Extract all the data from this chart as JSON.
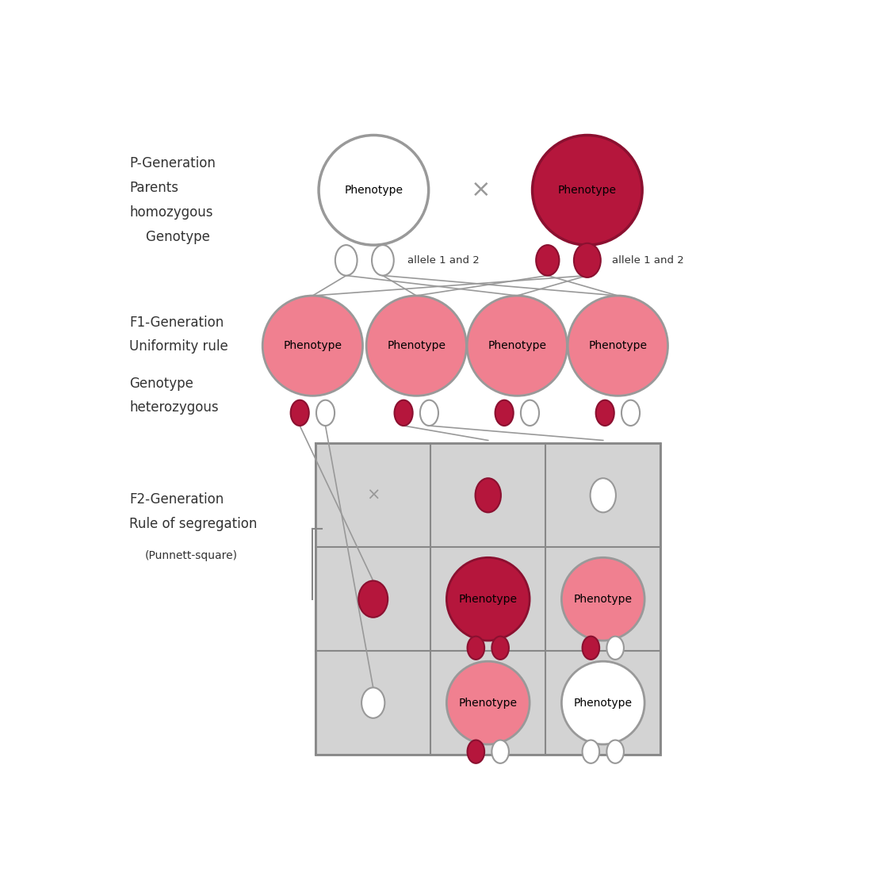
{
  "colors": {
    "white_flower": "#FFFFFF",
    "red_flower": "#B5163C",
    "pink_flower": "#F08090",
    "circle_edge": "#999999",
    "red_edge": "#8B1030",
    "grid_bg": "#D3D3D3",
    "grid_line": "#888888",
    "text_label": "#333333",
    "cross_color": "#999999"
  },
  "labels": {
    "phenotype": "Phenotype",
    "allele_left": "allele 1 and 2",
    "allele_right": "allele 1 and 2",
    "p_gen_line1": "P-Generation",
    "p_gen_line2": "Parents",
    "p_gen_line3": "homozygous",
    "p_gen_line4": "    Genotype",
    "f1_line1": "F1-Generation",
    "f1_line2": "Uniformity rule",
    "f1_line3": "Genotype",
    "f1_line4": "heterozygous",
    "f2_line1": "F2-Generation",
    "f2_line2": "Rule of segregation",
    "f2_line3": "(Punnett-square)"
  },
  "figsize": [
    11.0,
    11.0
  ],
  "dpi": 100,
  "xlim": [
    0,
    11
  ],
  "ylim": [
    0,
    11
  ]
}
